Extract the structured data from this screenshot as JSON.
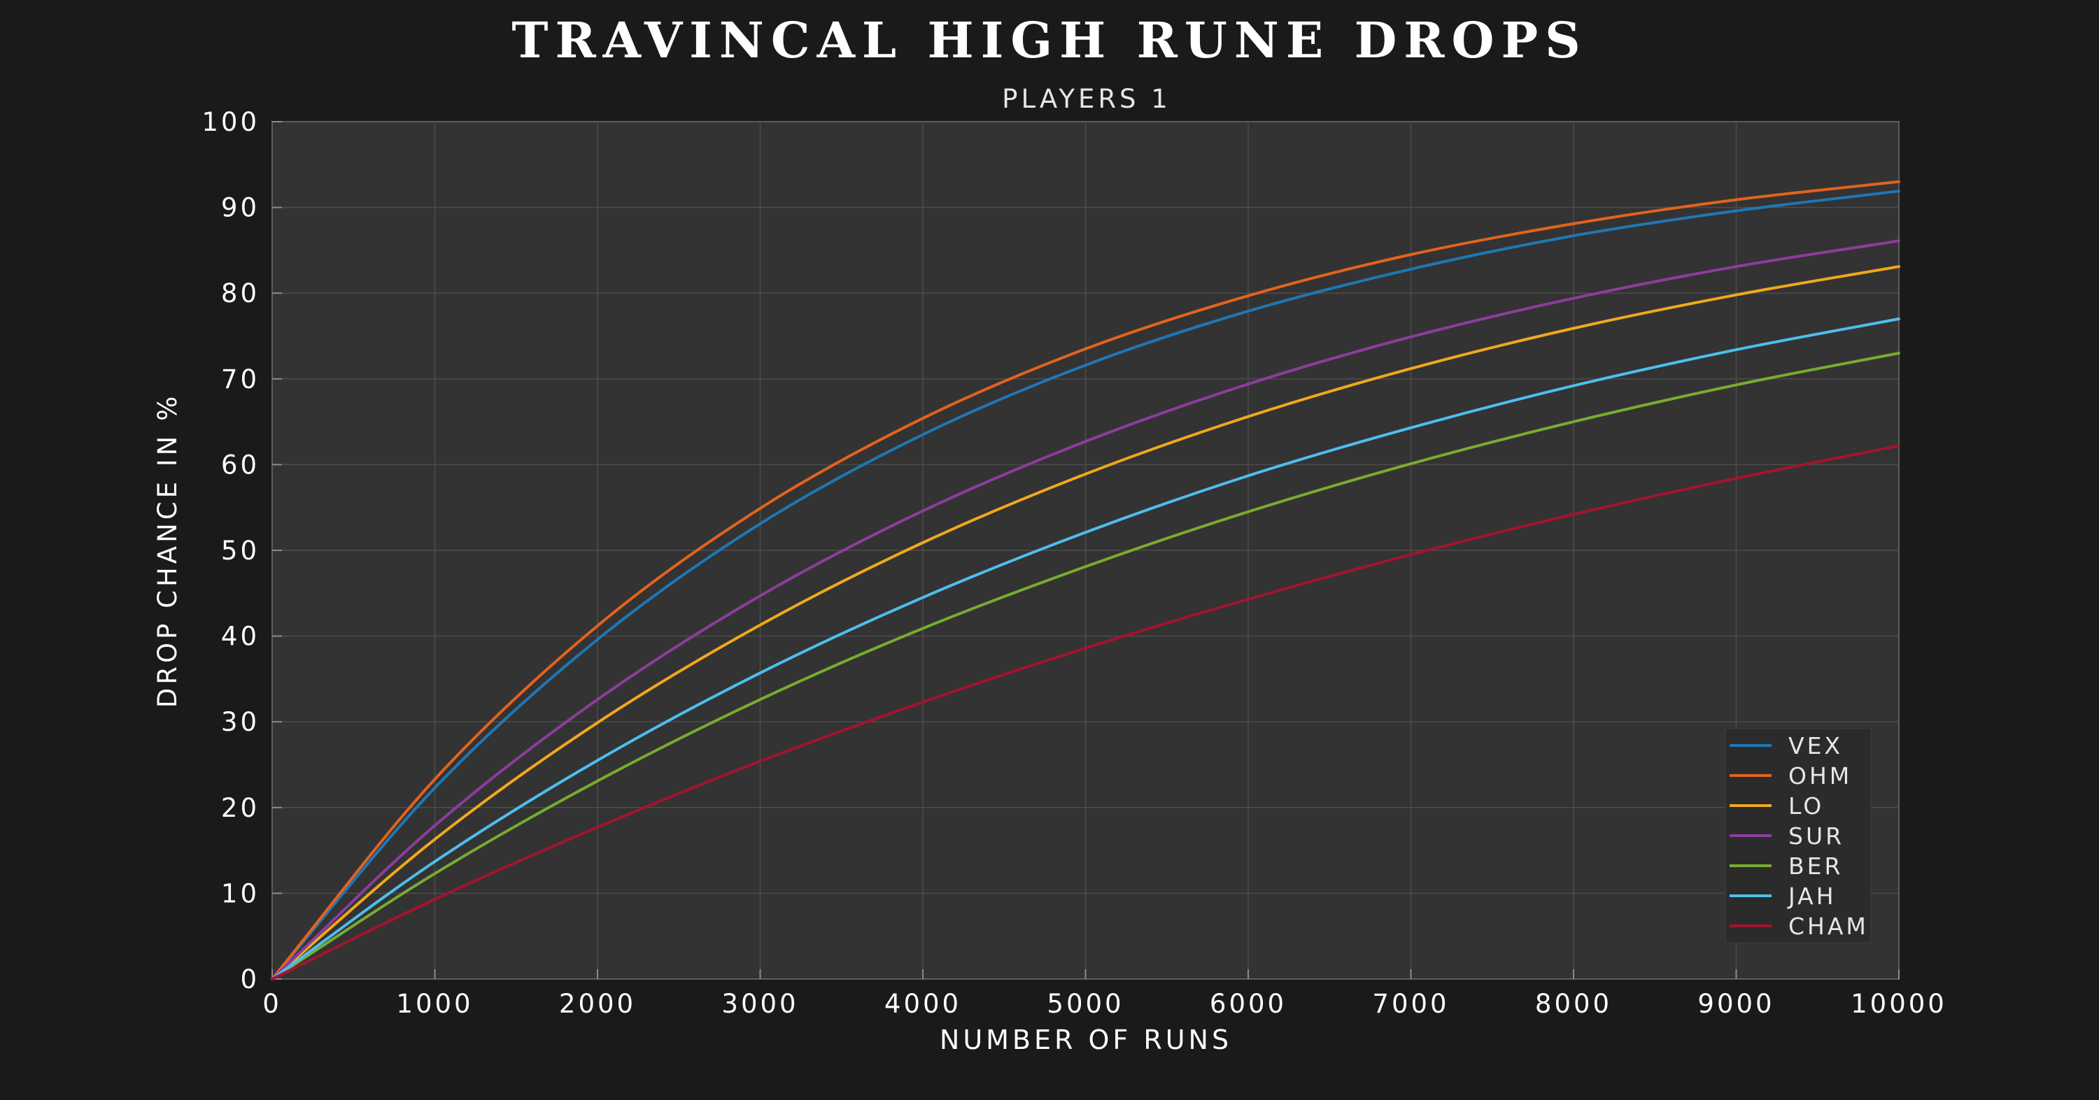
{
  "chart_data": {
    "type": "line",
    "title": "TRAVINCAL HIGH RUNE DROPS",
    "subtitle": "PLAYERS 1",
    "xlabel": "NUMBER OF RUNS",
    "ylabel": "DROP CHANCE IN %",
    "xlim": [
      0,
      10000
    ],
    "ylim": [
      0,
      100
    ],
    "x_ticks": [
      0,
      1000,
      2000,
      3000,
      4000,
      5000,
      6000,
      7000,
      8000,
      9000,
      10000
    ],
    "y_ticks": [
      0,
      10,
      20,
      30,
      40,
      50,
      60,
      70,
      80,
      90,
      100
    ],
    "x_tick_labels": [
      "0",
      "1000",
      "2000",
      "3000",
      "4000",
      "5000",
      "6000",
      "7000",
      "8000",
      "9000",
      "10000"
    ],
    "y_tick_labels": [
      "0",
      "10",
      "20",
      "30",
      "40",
      "50",
      "60",
      "70",
      "80",
      "90",
      "100"
    ],
    "grid": true,
    "legend_position": "bottom-right",
    "colors": {
      "background": "#1a1a1a",
      "plot_background": "#333333",
      "grid": "#4d4d4d",
      "axis": "#8c8c8c",
      "text": "#ffffff"
    },
    "x": [
      0,
      1000,
      2000,
      3000,
      4000,
      5000,
      6000,
      7000,
      8000,
      9000,
      10000
    ],
    "series": [
      {
        "name": "VEX",
        "color": "#1f77b4",
        "values": [
          0,
          22.3,
          39.6,
          53.1,
          63.5,
          71.6,
          77.9,
          82.8,
          86.7,
          89.6,
          91.9
        ]
      },
      {
        "name": "OHM",
        "color": "#e2631e",
        "values": [
          0,
          23.3,
          41.2,
          54.9,
          65.4,
          73.5,
          79.7,
          84.5,
          88.1,
          90.9,
          93.0
        ]
      },
      {
        "name": "LO",
        "color": "#f0a81c",
        "values": [
          0,
          16.3,
          29.9,
          41.3,
          50.9,
          58.9,
          65.6,
          71.2,
          75.9,
          79.8,
          83.1
        ]
      },
      {
        "name": "SUR",
        "color": "#8c3d9c",
        "values": [
          0,
          17.9,
          32.6,
          44.7,
          54.6,
          62.7,
          69.4,
          74.9,
          79.4,
          83.1,
          86.1
        ]
      },
      {
        "name": "BER",
        "color": "#77ac30",
        "values": [
          0,
          12.3,
          23.1,
          32.6,
          40.9,
          48.1,
          54.5,
          60.1,
          65.0,
          69.3,
          73.0
        ]
      },
      {
        "name": "JAH",
        "color": "#4dbeee",
        "values": [
          0,
          13.7,
          25.5,
          35.7,
          44.5,
          52.1,
          58.7,
          64.3,
          69.2,
          73.4,
          77.0
        ]
      },
      {
        "name": "CHAM",
        "color": "#a2142f",
        "values": [
          0,
          9.3,
          17.7,
          25.4,
          32.3,
          38.6,
          44.3,
          49.5,
          54.2,
          58.4,
          62.2
        ]
      }
    ]
  }
}
